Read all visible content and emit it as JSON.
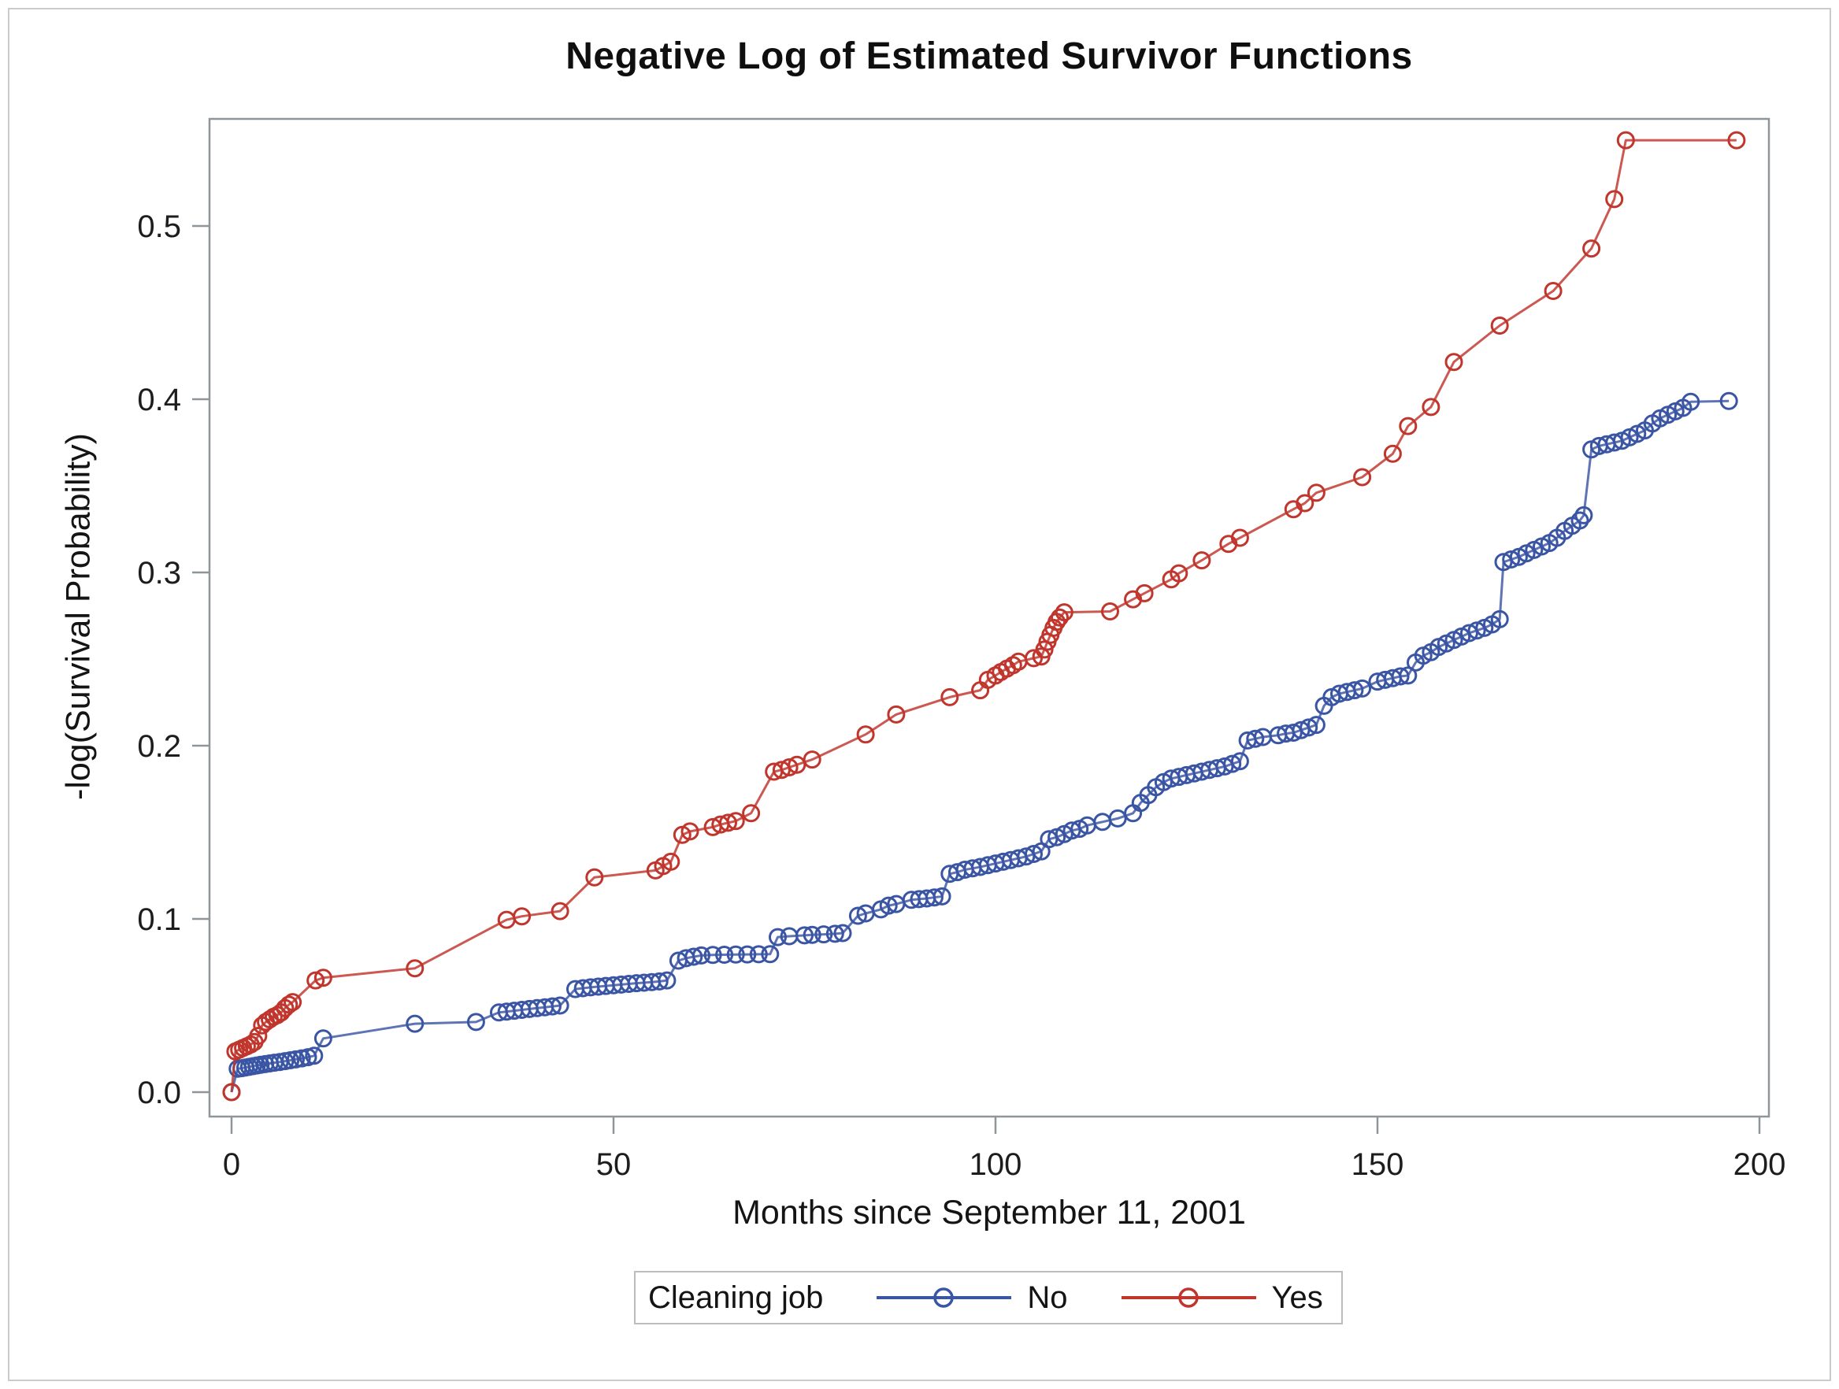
{
  "chart_data": {
    "type": "line",
    "title": "Negative Log of Estimated Survivor Functions",
    "xlabel": "Months since September 11, 2001",
    "ylabel": "-log(Survival Probability)",
    "x_axis": {
      "min": 0,
      "max": 200,
      "ticks": [
        0,
        50,
        100,
        150,
        200
      ]
    },
    "y_axis": {
      "min": 0.0,
      "max": 0.55,
      "ticks": [
        "0.0",
        "0.1",
        "0.2",
        "0.3",
        "0.4",
        "0.5"
      ]
    },
    "grid": false,
    "frame_color": "#8f9699",
    "legend": {
      "title": "Cleaning job",
      "position": "bottom"
    },
    "series": [
      {
        "name": "No",
        "color": "#3A55A4",
        "marker": "open-circle",
        "points": [
          [
            0,
            0
          ],
          [
            0.8,
            0.0135
          ],
          [
            1.3,
            0.0138
          ],
          [
            1.8,
            0.0142
          ],
          [
            2.3,
            0.0146
          ],
          [
            2.8,
            0.015
          ],
          [
            3.3,
            0.0154
          ],
          [
            3.8,
            0.0158
          ],
          [
            4.4,
            0.0162
          ],
          [
            5,
            0.0166
          ],
          [
            5.6,
            0.017
          ],
          [
            6.3,
            0.0174
          ],
          [
            7,
            0.0179
          ],
          [
            7.7,
            0.0184
          ],
          [
            8.4,
            0.0189
          ],
          [
            9.2,
            0.0195
          ],
          [
            10,
            0.0202
          ],
          [
            10.8,
            0.021
          ],
          [
            12,
            0.031
          ],
          [
            24,
            0.0395
          ],
          [
            32,
            0.0405
          ],
          [
            35,
            0.046
          ],
          [
            36,
            0.0465
          ],
          [
            37,
            0.047
          ],
          [
            38,
            0.0475
          ],
          [
            39,
            0.048
          ],
          [
            40,
            0.0485
          ],
          [
            41,
            0.049
          ],
          [
            42,
            0.0495
          ],
          [
            43,
            0.05
          ],
          [
            45,
            0.0595
          ],
          [
            46,
            0.06
          ],
          [
            47,
            0.0605
          ],
          [
            48,
            0.0609
          ],
          [
            49,
            0.0613
          ],
          [
            50,
            0.0617
          ],
          [
            51,
            0.0621
          ],
          [
            52,
            0.0625
          ],
          [
            53,
            0.0629
          ],
          [
            54,
            0.0632
          ],
          [
            55,
            0.0635
          ],
          [
            56,
            0.0639
          ],
          [
            57,
            0.0645
          ],
          [
            58.5,
            0.0759
          ],
          [
            59.5,
            0.0773
          ],
          [
            60.5,
            0.0782
          ],
          [
            61.5,
            0.0789
          ],
          [
            63,
            0.0792
          ],
          [
            64.5,
            0.0793
          ],
          [
            66,
            0.0794
          ],
          [
            67.5,
            0.0795
          ],
          [
            69,
            0.0796
          ],
          [
            70.5,
            0.0797
          ],
          [
            71.5,
            0.0895
          ],
          [
            73,
            0.09
          ],
          [
            75,
            0.0905
          ],
          [
            76,
            0.0908
          ],
          [
            77.5,
            0.0911
          ],
          [
            79,
            0.0914
          ],
          [
            80,
            0.0918
          ],
          [
            82,
            0.1018
          ],
          [
            83,
            0.1032
          ],
          [
            85,
            0.1055
          ],
          [
            86,
            0.1077
          ],
          [
            87,
            0.1086
          ],
          [
            89,
            0.111
          ],
          [
            90,
            0.1114
          ],
          [
            91,
            0.1118
          ],
          [
            92,
            0.1124
          ],
          [
            93,
            0.113
          ],
          [
            94,
            0.126
          ],
          [
            95,
            0.127
          ],
          [
            96,
            0.1284
          ],
          [
            97,
            0.1292
          ],
          [
            98,
            0.13
          ],
          [
            99,
            0.131
          ],
          [
            100,
            0.132
          ],
          [
            101,
            0.133
          ],
          [
            102,
            0.134
          ],
          [
            103,
            0.135
          ],
          [
            104,
            0.136
          ],
          [
            105,
            0.1375
          ],
          [
            106,
            0.139
          ],
          [
            107,
            0.146
          ],
          [
            108,
            0.1472
          ],
          [
            109,
            0.149
          ],
          [
            110,
            0.151
          ],
          [
            111,
            0.152
          ],
          [
            112,
            0.154
          ],
          [
            114,
            0.156
          ],
          [
            116,
            0.158
          ],
          [
            118,
            0.161
          ],
          [
            119,
            0.167
          ],
          [
            120,
            0.1715
          ],
          [
            121,
            0.176
          ],
          [
            122,
            0.179
          ],
          [
            123,
            0.181
          ],
          [
            124,
            0.182
          ],
          [
            125,
            0.183
          ],
          [
            126,
            0.184
          ],
          [
            127,
            0.185
          ],
          [
            128,
            0.186
          ],
          [
            129,
            0.187
          ],
          [
            130,
            0.188
          ],
          [
            131,
            0.1895
          ],
          [
            132,
            0.191
          ],
          [
            133,
            0.203
          ],
          [
            134,
            0.204
          ],
          [
            135,
            0.205
          ],
          [
            137,
            0.206
          ],
          [
            138,
            0.207
          ],
          [
            139,
            0.2075
          ],
          [
            140,
            0.209
          ],
          [
            141,
            0.2105
          ],
          [
            142,
            0.212
          ],
          [
            143,
            0.223
          ],
          [
            144,
            0.228
          ],
          [
            145,
            0.23
          ],
          [
            146,
            0.231
          ],
          [
            147,
            0.232
          ],
          [
            148,
            0.233
          ],
          [
            150,
            0.237
          ],
          [
            151,
            0.238
          ],
          [
            152,
            0.239
          ],
          [
            153,
            0.24
          ],
          [
            154,
            0.2405
          ],
          [
            155,
            0.248
          ],
          [
            156,
            0.252
          ],
          [
            157,
            0.254
          ],
          [
            158,
            0.257
          ],
          [
            159,
            0.259
          ],
          [
            160,
            0.261
          ],
          [
            161,
            0.263
          ],
          [
            162,
            0.265
          ],
          [
            163,
            0.2665
          ],
          [
            164,
            0.268
          ],
          [
            165,
            0.27
          ],
          [
            166,
            0.273
          ],
          [
            166.5,
            0.306
          ],
          [
            167.5,
            0.3075
          ],
          [
            168.5,
            0.309
          ],
          [
            169.5,
            0.311
          ],
          [
            170.5,
            0.313
          ],
          [
            171.5,
            0.315
          ],
          [
            172.5,
            0.317
          ],
          [
            173.5,
            0.32
          ],
          [
            174.5,
            0.324
          ],
          [
            175.5,
            0.327
          ],
          [
            176.5,
            0.33
          ],
          [
            177,
            0.333
          ],
          [
            178,
            0.371
          ],
          [
            179,
            0.373
          ],
          [
            180,
            0.374
          ],
          [
            181,
            0.375
          ],
          [
            182,
            0.376
          ],
          [
            183,
            0.378
          ],
          [
            184,
            0.38
          ],
          [
            185,
            0.382
          ],
          [
            186,
            0.386
          ],
          [
            187,
            0.389
          ],
          [
            188,
            0.391
          ],
          [
            189,
            0.393
          ],
          [
            190,
            0.395
          ],
          [
            191,
            0.3985
          ],
          [
            196,
            0.399
          ]
        ]
      },
      {
        "name": "Yes",
        "color": "#C0352C",
        "marker": "open-circle",
        "points": [
          [
            0,
            0
          ],
          [
            0.5,
            0.0235
          ],
          [
            1,
            0.0245
          ],
          [
            1.5,
            0.0255
          ],
          [
            2,
            0.0265
          ],
          [
            2.5,
            0.0275
          ],
          [
            3,
            0.029
          ],
          [
            3.5,
            0.0325
          ],
          [
            4,
            0.0385
          ],
          [
            4.5,
            0.0405
          ],
          [
            5,
            0.042
          ],
          [
            5.5,
            0.0435
          ],
          [
            6,
            0.0445
          ],
          [
            6.5,
            0.046
          ],
          [
            7,
            0.0485
          ],
          [
            7.5,
            0.0505
          ],
          [
            8,
            0.052
          ],
          [
            11,
            0.0645
          ],
          [
            12,
            0.066
          ],
          [
            24,
            0.0715
          ],
          [
            36,
            0.0995
          ],
          [
            38,
            0.1015
          ],
          [
            43,
            0.1045
          ],
          [
            47.5,
            0.124
          ],
          [
            55.5,
            0.128
          ],
          [
            56.5,
            0.1305
          ],
          [
            57.5,
            0.133
          ],
          [
            59,
            0.1485
          ],
          [
            60,
            0.1505
          ],
          [
            63,
            0.153
          ],
          [
            64,
            0.1545
          ],
          [
            65,
            0.1555
          ],
          [
            66,
            0.1565
          ],
          [
            68,
            0.161
          ],
          [
            71,
            0.185
          ],
          [
            72,
            0.186
          ],
          [
            73,
            0.1875
          ],
          [
            74,
            0.189
          ],
          [
            76,
            0.192
          ],
          [
            83,
            0.2065
          ],
          [
            87,
            0.218
          ],
          [
            94,
            0.228
          ],
          [
            98,
            0.232
          ],
          [
            99,
            0.238
          ],
          [
            100,
            0.2405
          ],
          [
            100.7,
            0.2425
          ],
          [
            101.5,
            0.2445
          ],
          [
            102.3,
            0.2465
          ],
          [
            103,
            0.2485
          ],
          [
            105,
            0.2505
          ],
          [
            106,
            0.2515
          ],
          [
            106.4,
            0.2555
          ],
          [
            106.8,
            0.26
          ],
          [
            107.2,
            0.264
          ],
          [
            107.6,
            0.268
          ],
          [
            108,
            0.2715
          ],
          [
            108.4,
            0.274
          ],
          [
            109,
            0.277
          ],
          [
            115,
            0.2775
          ],
          [
            118,
            0.2845
          ],
          [
            119.5,
            0.288
          ],
          [
            123,
            0.296
          ],
          [
            124,
            0.2995
          ],
          [
            127,
            0.307
          ],
          [
            130.5,
            0.3165
          ],
          [
            132,
            0.32
          ],
          [
            139,
            0.3365
          ],
          [
            140.5,
            0.34
          ],
          [
            142,
            0.346
          ],
          [
            148,
            0.355
          ],
          [
            152,
            0.3685
          ],
          [
            154,
            0.3845
          ],
          [
            157,
            0.3955
          ],
          [
            160,
            0.4215
          ],
          [
            166,
            0.4425
          ],
          [
            173,
            0.4625
          ],
          [
            178,
            0.487
          ],
          [
            181,
            0.5155
          ],
          [
            182.5,
            0.5495
          ],
          [
            197,
            0.5495
          ]
        ]
      }
    ]
  }
}
